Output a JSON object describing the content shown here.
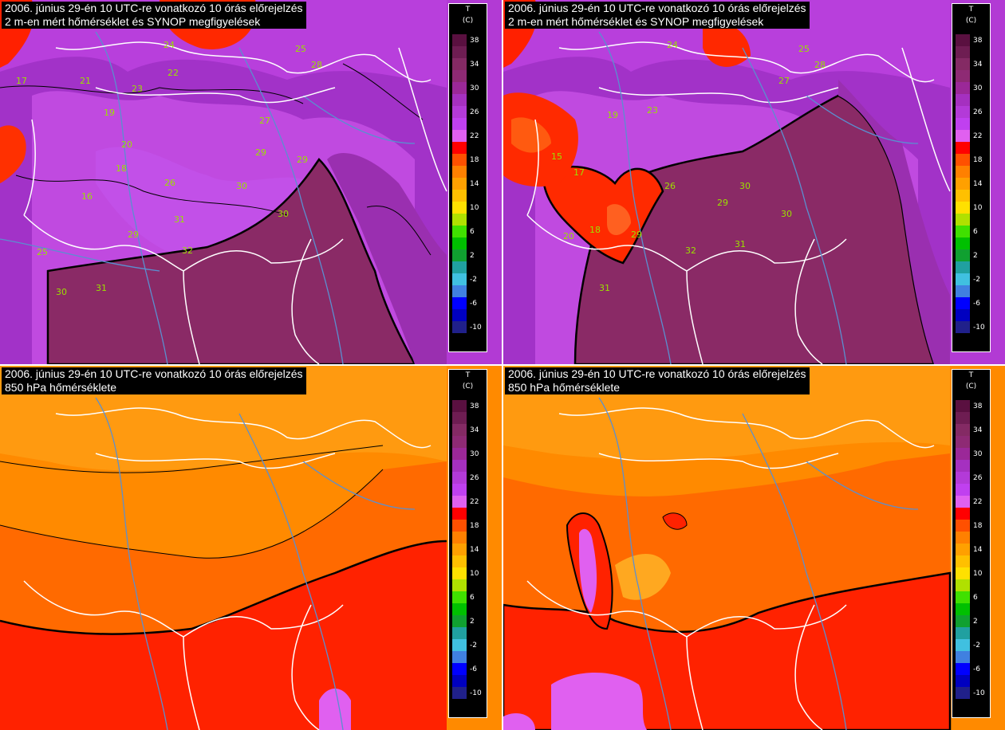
{
  "panels": [
    {
      "id": "p1",
      "title_line1": "2006. június 29-én 10 UTC-re vonatkozó 10 órás előrejelzés",
      "title_line2": "2 m-en mért hőmérséklet és SYNOP megfigyelések",
      "variant": "surface-a",
      "stations": [
        "25",
        "28",
        "21",
        "17",
        "22",
        "23",
        "27",
        "29",
        "26",
        "19",
        "18",
        "16",
        "20",
        "30",
        "31",
        "32",
        "24"
      ]
    },
    {
      "id": "p2",
      "title_line1": "2006. június 29-én 10 UTC-re vonatkozó 10 órás előrejelzés",
      "title_line2": "2 m-en mért hőmérséklet és SYNOP megfigyelések",
      "variant": "surface-b",
      "stations": [
        "25",
        "28",
        "27",
        "23",
        "26",
        "19",
        "15",
        "17",
        "18",
        "29",
        "30",
        "31",
        "32",
        "20",
        "24"
      ]
    },
    {
      "id": "p3",
      "title_line1": "2006. június 29-én 10 UTC-re vonatkozó 10 órás előrejelzés",
      "title_line2": "850 hPa hőmérséklete",
      "variant": "upper-a"
    },
    {
      "id": "p4",
      "title_line1": "2006. június 29-én 10 UTC-re vonatkozó 10 órás előrejelzés",
      "title_line2": "850 hPa hőmérséklete",
      "variant": "upper-b"
    }
  ],
  "legend": {
    "var": "T",
    "unit": "(C)",
    "ticks": [
      "38",
      "34",
      "30",
      "26",
      "22",
      "18",
      "14",
      "10",
      "6",
      "2",
      "-2",
      "-6",
      "-10"
    ],
    "colors": [
      "#5a1040",
      "#6e1d52",
      "#842a64",
      "#8e2a74",
      "#9b2898",
      "#a530c0",
      "#b33ad8",
      "#c040f0",
      "#e060f0",
      "#ff0000",
      "#ff5000",
      "#ff8000",
      "#ffa000",
      "#ffc000",
      "#ffe000",
      "#b0e000",
      "#40e000",
      "#00c000",
      "#10a030",
      "#20a0a0",
      "#40c0e0",
      "#4080e0",
      "#0000ff",
      "#0000c0",
      "#20208a"
    ]
  }
}
